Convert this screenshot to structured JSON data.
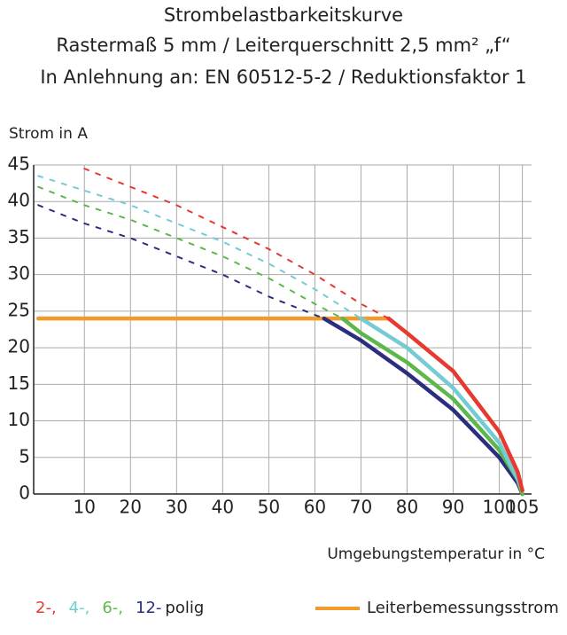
{
  "chart_data": {
    "type": "line",
    "title": "Strombelastbarkeitskurve",
    "subtitle": [
      "Rastermaß 5 mm / Leiterquerschnitt 2,5 mm² „f“",
      "In Anlehnung an: EN 60512-5-2 / Reduktionsfaktor 1"
    ],
    "y_label": "Strom in A",
    "x_label": "Umgebungstemperatur in °C",
    "xlim": [
      -1,
      107
    ],
    "xticks": [
      10,
      20,
      30,
      40,
      50,
      60,
      70,
      80,
      90,
      100,
      105
    ],
    "ylim": [
      0,
      45
    ],
    "yticks": [
      0,
      5,
      10,
      15,
      20,
      25,
      30,
      35,
      40,
      45
    ],
    "grid": true,
    "series": [
      {
        "name": "2-,",
        "color": "#e8392f",
        "x": [
          10,
          20,
          30,
          40,
          50,
          60,
          70,
          76,
          80,
          90,
          100,
          104,
          105
        ],
        "values": [
          44.5,
          42,
          39.5,
          36.5,
          33.5,
          30,
          26,
          24,
          22,
          16.8,
          8.5,
          3,
          0.5
        ]
      },
      {
        "name": "4-,",
        "color": "#74cbd3",
        "x": [
          0,
          10,
          20,
          30,
          40,
          50,
          60,
          70,
          80,
          90,
          100,
          104,
          105
        ],
        "values": [
          43.5,
          41.5,
          39.5,
          37,
          34.5,
          31.5,
          28,
          24,
          20,
          14.5,
          7,
          2,
          0.5
        ]
      },
      {
        "name": "6-,",
        "color": "#5cb84a",
        "x": [
          0,
          10,
          20,
          30,
          40,
          50,
          60,
          66,
          70,
          80,
          90,
          100,
          104,
          105
        ],
        "values": [
          42,
          39.5,
          37.5,
          35,
          32.5,
          29.5,
          26,
          24,
          22,
          18,
          13,
          6,
          2,
          0
        ]
      },
      {
        "name": "12-",
        "color": "#2b2d7e",
        "x": [
          0,
          10,
          20,
          30,
          40,
          50,
          60,
          62,
          70,
          80,
          90,
          100,
          104,
          105
        ],
        "values": [
          39.5,
          37,
          35,
          32.5,
          30,
          27,
          24.5,
          24,
          21,
          16.5,
          11.5,
          5,
          1.5,
          0
        ]
      },
      {
        "name": "Leiterbemessungsstrom",
        "color": "#f29a2e",
        "x": [
          0,
          76
        ],
        "values": [
          24,
          24
        ]
      }
    ],
    "legend_suffix": "polig"
  }
}
